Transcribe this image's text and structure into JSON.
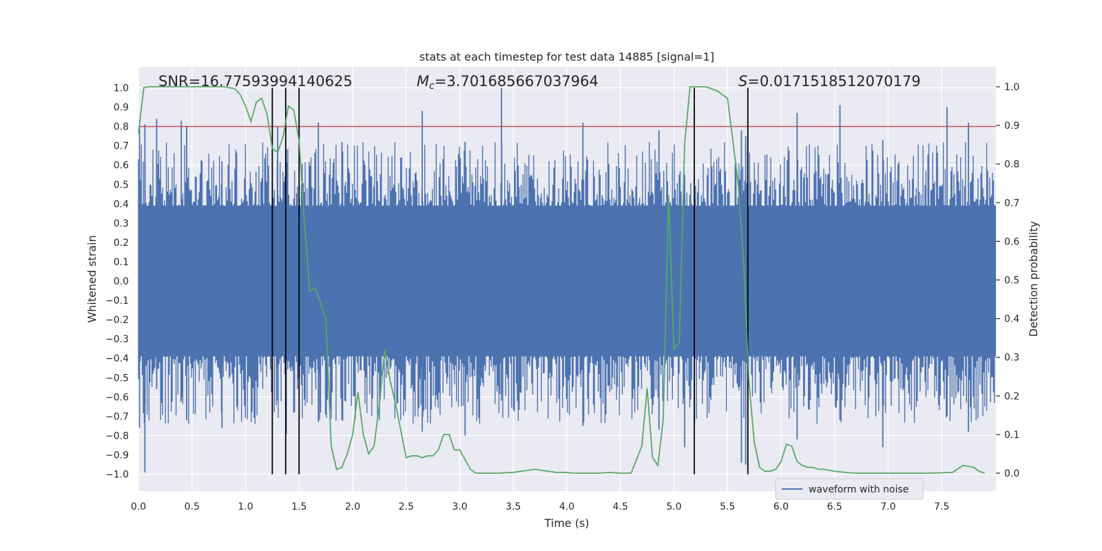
{
  "chart_data": {
    "type": "line",
    "title": "stats at each timestep for test data 14885 [signal=1]",
    "xlabel": "Time (s)",
    "ylabel_left": "Whitened strain",
    "ylabel_right": "Detection probability",
    "xlim": [
      0.0,
      8.0
    ],
    "ylim_left": [
      -1.09,
      1.09
    ],
    "ylim_right": [
      -0.045,
      1.045
    ],
    "x_ticks": [
      0.0,
      0.5,
      1.0,
      1.5,
      2.0,
      2.5,
      3.0,
      3.5,
      4.0,
      4.5,
      5.0,
      5.5,
      6.0,
      6.5,
      7.0,
      7.5
    ],
    "x_tick_labels": [
      "0.0",
      "0.5",
      "1.0",
      "1.5",
      "2.0",
      "2.5",
      "3.0",
      "3.5",
      "4.0",
      "4.5",
      "5.0",
      "5.5",
      "6.0",
      "6.5",
      "7.0",
      "7.5"
    ],
    "y_left_ticks": [
      1.0,
      0.9,
      0.8,
      0.7,
      0.6,
      0.5,
      0.4,
      0.3,
      0.2,
      0.1,
      0.0,
      -0.1,
      -0.2,
      -0.3,
      -0.4,
      -0.5,
      -0.6,
      -0.7,
      -0.8,
      -0.9,
      -1.0
    ],
    "y_left_tick_labels": [
      "1.0",
      "0.9",
      "0.8",
      "0.7",
      "0.6",
      "0.5",
      "0.4",
      "0.3",
      "0.2",
      "0.1",
      "0.0",
      "−0.1",
      "−0.2",
      "−0.3",
      "−0.4",
      "−0.5",
      "−0.6",
      "−0.7",
      "−0.8",
      "−0.9",
      "−1.0"
    ],
    "y_right_ticks": [
      1.0,
      0.9,
      0.8,
      0.7,
      0.6,
      0.5,
      0.4,
      0.3,
      0.2,
      0.1,
      0.0
    ],
    "y_right_tick_labels": [
      "1.0",
      "0.9",
      "0.8",
      "0.7",
      "0.6",
      "0.5",
      "0.4",
      "0.3",
      "0.2",
      "0.1",
      "0.0"
    ],
    "annotations": {
      "snr": "SNR=16.77593994140625",
      "mc_symbol": "M",
      "mc_subscript": "c",
      "mc_value": "=3.701685667037964",
      "s_symbol": "S",
      "s_value": "=0.0171518512070179"
    },
    "legend": {
      "label": "waveform with noise",
      "placement": "lower-right"
    },
    "threshold_line": {
      "y": 0.8,
      "axis": "left",
      "color": "#c44e52"
    },
    "vertical_markers": [
      1.25,
      1.375,
      1.5,
      5.19,
      5.69
    ],
    "waveform": {
      "name": "waveform with noise",
      "color": "#4c72b0",
      "core_band": [
        -0.39,
        0.39
      ],
      "spikes": [
        {
          "x": 0.01,
          "top": 0.8,
          "bottom": -0.76
        },
        {
          "x": 0.06,
          "top": 0.81,
          "bottom": -0.99
        },
        {
          "x": 0.17,
          "top": 0.84,
          "bottom": -0.56
        },
        {
          "x": 0.4,
          "top": 0.83,
          "bottom": -0.62
        },
        {
          "x": 0.45,
          "top": 0.8,
          "bottom": -0.72
        },
        {
          "x": 0.78,
          "top": 0.62,
          "bottom": -0.76
        },
        {
          "x": 1.3,
          "top": 0.8,
          "bottom": -0.62
        },
        {
          "x": 1.38,
          "top": 0.68,
          "bottom": -0.79
        },
        {
          "x": 1.68,
          "top": 0.82,
          "bottom": -0.73
        },
        {
          "x": 1.9,
          "top": 0.72,
          "bottom": -0.72
        },
        {
          "x": 2.65,
          "top": 0.88,
          "bottom": -0.78
        },
        {
          "x": 3.05,
          "top": 0.72,
          "bottom": -0.8
        },
        {
          "x": 3.39,
          "top": 1.0,
          "bottom": -0.62
        },
        {
          "x": 4.15,
          "top": 0.82,
          "bottom": -0.75
        },
        {
          "x": 4.86,
          "top": 0.78,
          "bottom": -0.77
        },
        {
          "x": 5.1,
          "top": 0.55,
          "bottom": -0.86
        },
        {
          "x": 5.63,
          "top": 0.78,
          "bottom": -0.94
        },
        {
          "x": 5.67,
          "top": 0.75,
          "bottom": -0.95
        },
        {
          "x": 6.15,
          "top": 0.87,
          "bottom": -0.82
        },
        {
          "x": 6.55,
          "top": 0.91,
          "bottom": -0.72
        },
        {
          "x": 6.95,
          "top": 0.73,
          "bottom": -0.86
        },
        {
          "x": 7.55,
          "top": 0.9,
          "bottom": -0.7
        },
        {
          "x": 7.75,
          "top": 0.82,
          "bottom": -0.78
        }
      ]
    },
    "probability": {
      "name": "detection probability",
      "color": "#55a868",
      "x": [
        0.0,
        0.05,
        0.1,
        0.2,
        0.3,
        0.4,
        0.5,
        0.6,
        0.7,
        0.8,
        0.9,
        0.95,
        1.0,
        1.05,
        1.1,
        1.15,
        1.2,
        1.25,
        1.3,
        1.35,
        1.4,
        1.45,
        1.5,
        1.55,
        1.6,
        1.65,
        1.7,
        1.75,
        1.8,
        1.85,
        1.9,
        1.95,
        2.0,
        2.05,
        2.1,
        2.15,
        2.2,
        2.25,
        2.3,
        2.35,
        2.4,
        2.45,
        2.5,
        2.55,
        2.6,
        2.65,
        2.7,
        2.75,
        2.8,
        2.85,
        2.9,
        2.95,
        3.0,
        3.05,
        3.1,
        3.15,
        3.2,
        3.25,
        3.3,
        3.35,
        3.5,
        3.7,
        3.9,
        4.0,
        4.05,
        4.1,
        4.2,
        4.3,
        4.4,
        4.5,
        4.6,
        4.7,
        4.75,
        4.8,
        4.85,
        4.9,
        4.95,
        5.0,
        5.05,
        5.1,
        5.15,
        5.2,
        5.25,
        5.3,
        5.4,
        5.5,
        5.6,
        5.65,
        5.7,
        5.75,
        5.8,
        5.85,
        5.9,
        5.95,
        6.0,
        6.05,
        6.1,
        6.15,
        6.2,
        6.25,
        6.3,
        6.35,
        6.4,
        6.5,
        6.6,
        6.7,
        6.8,
        6.9,
        7.0,
        7.2,
        7.4,
        7.6,
        7.7,
        7.8,
        7.85,
        7.9
      ],
      "y": [
        0.88,
        0.998,
        1.0,
        1.0,
        1.0,
        1.0,
        1.0,
        1.0,
        1.0,
        1.0,
        0.995,
        0.98,
        0.95,
        0.91,
        0.96,
        0.97,
        0.93,
        0.84,
        0.83,
        0.87,
        0.95,
        0.94,
        0.86,
        0.65,
        0.47,
        0.48,
        0.44,
        0.4,
        0.07,
        0.01,
        0.015,
        0.05,
        0.1,
        0.21,
        0.1,
        0.05,
        0.07,
        0.18,
        0.32,
        0.24,
        0.18,
        0.11,
        0.04,
        0.045,
        0.045,
        0.04,
        0.045,
        0.045,
        0.06,
        0.1,
        0.1,
        0.06,
        0.06,
        0.035,
        0.01,
        0.0,
        0.0,
        0.0,
        0.0,
        0.0,
        0.002,
        0.01,
        0.002,
        0.002,
        0.0,
        0.0,
        0.0,
        0.0,
        0.002,
        0.0,
        0.0,
        0.07,
        0.22,
        0.04,
        0.02,
        0.14,
        0.72,
        0.32,
        0.34,
        0.85,
        1.0,
        1.0,
        1.0,
        1.0,
        0.99,
        0.97,
        0.75,
        0.55,
        0.24,
        0.08,
        0.015,
        0.005,
        0.005,
        0.01,
        0.03,
        0.075,
        0.07,
        0.03,
        0.02,
        0.015,
        0.015,
        0.01,
        0.01,
        0.005,
        0.002,
        0.0,
        0.0,
        0.0,
        0.0,
        0.0,
        0.0,
        0.002,
        0.02,
        0.015,
        0.005,
        0.0
      ],
      "axis": "right"
    }
  }
}
